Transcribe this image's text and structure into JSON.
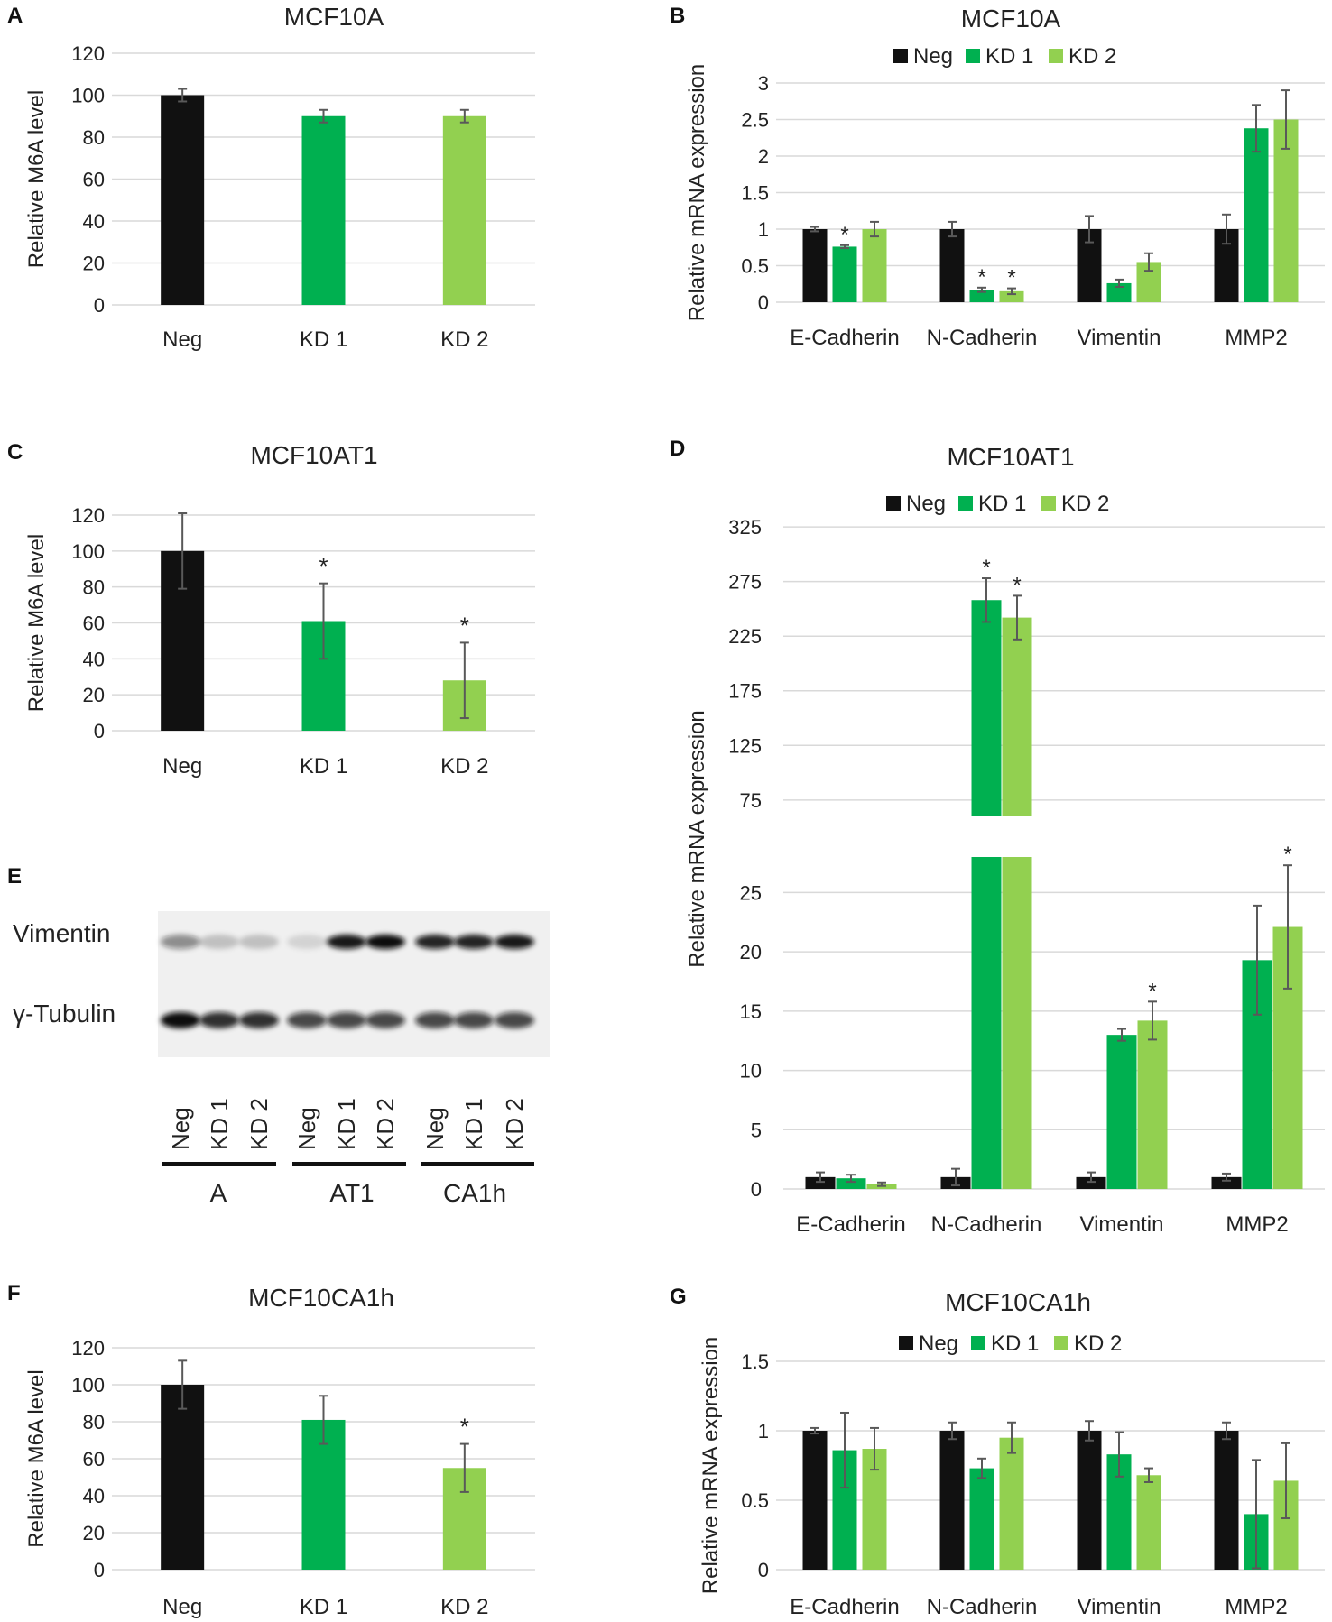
{
  "panels": {
    "A": "A",
    "B": "B",
    "C": "C",
    "D": "D",
    "E": "E",
    "F": "F",
    "G": "G"
  },
  "colors": {
    "neg": "#111111",
    "kd1": "#00b050",
    "kd2": "#92d050",
    "grid": "#d9d9d9",
    "err": "#595959"
  },
  "chart_data": [
    {
      "id": "A",
      "type": "bar",
      "title": "MCF10A",
      "ylabel": "Relative M6A level",
      "categories": [
        "Neg",
        "KD 1",
        "KD 2"
      ],
      "values": [
        100,
        90,
        90
      ],
      "errors": [
        3,
        3,
        3
      ],
      "ylim": [
        0,
        120
      ],
      "yticks": [
        0,
        20,
        40,
        60,
        80,
        100,
        120
      ],
      "stars": [
        false,
        false,
        false
      ]
    },
    {
      "id": "B",
      "type": "bar",
      "title": "MCF10A",
      "ylabel": "Relative mRNA expression",
      "categories": [
        "E-Cadherin",
        "N-Cadherin",
        "Vimentin",
        "MMP2"
      ],
      "legend": [
        "Neg",
        "KD 1",
        "KD 2"
      ],
      "series": [
        {
          "name": "Neg",
          "values": [
            1,
            1,
            1,
            1
          ],
          "errors": [
            0.03,
            0.1,
            0.18,
            0.2
          ],
          "stars": [
            false,
            false,
            false,
            false
          ]
        },
        {
          "name": "KD 1",
          "values": [
            0.76,
            0.17,
            0.26,
            2.38
          ],
          "errors": [
            0.02,
            0.03,
            0.05,
            0.32
          ],
          "stars": [
            true,
            true,
            false,
            false
          ]
        },
        {
          "name": "KD 2",
          "values": [
            1,
            0.15,
            0.55,
            2.5
          ],
          "errors": [
            0.1,
            0.04,
            0.12,
            0.4
          ],
          "stars": [
            false,
            true,
            false,
            false
          ]
        }
      ],
      "ylim": [
        0,
        3
      ],
      "yticks": [
        0,
        0.5,
        1,
        1.5,
        2,
        2.5,
        3
      ],
      "ytick_labels": [
        "0",
        "0.5",
        "1",
        "1.5",
        "2",
        "2.5",
        "3"
      ]
    },
    {
      "id": "C",
      "type": "bar",
      "title": "MCF10AT1",
      "ylabel": "Relative M6A level",
      "categories": [
        "Neg",
        "KD 1",
        "KD 2"
      ],
      "values": [
        100,
        61,
        28
      ],
      "errors": [
        21,
        21,
        21
      ],
      "ylim": [
        0,
        120
      ],
      "yticks": [
        0,
        20,
        40,
        60,
        80,
        100,
        120
      ],
      "stars": [
        false,
        true,
        true
      ]
    },
    {
      "id": "D",
      "type": "bar",
      "title": "MCF10AT1",
      "ylabel": "Relative mRNA expression",
      "categories": [
        "E-Cadherin",
        "N-Cadherin",
        "Vimentin",
        "MMP2"
      ],
      "legend": [
        "Neg",
        "KD 1",
        "KD 2"
      ],
      "broken_axis": true,
      "lower_range": [
        0,
        28
      ],
      "upper_range": [
        60,
        335
      ],
      "lower_ticks": [
        0,
        5,
        10,
        15,
        20,
        25
      ],
      "upper_ticks": [
        75,
        125,
        175,
        225,
        275,
        325
      ],
      "series": [
        {
          "name": "Neg",
          "values": [
            1,
            1,
            1,
            1
          ],
          "errors": [
            0.4,
            0.7,
            0.4,
            0.3
          ],
          "stars": [
            false,
            false,
            false,
            false
          ]
        },
        {
          "name": "KD 1",
          "values": [
            0.9,
            258,
            13,
            19.3
          ],
          "errors": [
            0.3,
            20,
            0.5,
            4.6
          ],
          "stars": [
            false,
            true,
            false,
            false
          ]
        },
        {
          "name": "KD 2",
          "values": [
            0.4,
            242,
            14.2,
            22.1
          ],
          "errors": [
            0.15,
            20,
            1.6,
            5.2
          ],
          "stars": [
            false,
            true,
            true,
            true
          ]
        }
      ]
    },
    {
      "id": "F",
      "type": "bar",
      "title": "MCF10CA1h",
      "ylabel": "Relative M6A level",
      "categories": [
        "Neg",
        "KD 1",
        "KD 2"
      ],
      "values": [
        100,
        81,
        55
      ],
      "errors": [
        13,
        13,
        13
      ],
      "ylim": [
        0,
        120
      ],
      "yticks": [
        0,
        20,
        40,
        60,
        80,
        100,
        120
      ],
      "stars": [
        false,
        false,
        true
      ]
    },
    {
      "id": "G",
      "type": "bar",
      "title": "MCF10CA1h",
      "ylabel": "Relative mRNA expression",
      "categories": [
        "E-Cadherin",
        "N-Cadherin",
        "Vimentin",
        "MMP2"
      ],
      "legend": [
        "Neg",
        "KD 1",
        "KD 2"
      ],
      "series": [
        {
          "name": "Neg",
          "values": [
            1,
            1,
            1,
            1
          ],
          "errors": [
            0.02,
            0.06,
            0.07,
            0.06
          ],
          "stars": [
            false,
            false,
            false,
            false
          ]
        },
        {
          "name": "KD 1",
          "values": [
            0.86,
            0.73,
            0.83,
            0.4
          ],
          "errors": [
            0.27,
            0.07,
            0.16,
            0.39
          ],
          "stars": [
            false,
            false,
            false,
            false
          ]
        },
        {
          "name": "KD 2",
          "values": [
            0.87,
            0.95,
            0.68,
            0.64
          ],
          "errors": [
            0.15,
            0.11,
            0.05,
            0.27
          ],
          "stars": [
            false,
            false,
            false,
            false
          ]
        }
      ],
      "ylim": [
        0,
        1.5
      ],
      "yticks": [
        0,
        0.5,
        1,
        1.5
      ],
      "ytick_labels": [
        "0",
        "0.5",
        "1",
        "1.5"
      ]
    }
  ],
  "blot": {
    "row_labels": [
      "Vimentin",
      "γ-Tubulin"
    ],
    "lanes": [
      "Neg",
      "KD 1",
      "KD 2",
      "Neg",
      "KD 1",
      "KD 2",
      "Neg",
      "KD 1",
      "KD 2"
    ],
    "groups": [
      "A",
      "AT1",
      "CA1h"
    ],
    "vimentin_intensity": [
      0.45,
      0.2,
      0.2,
      0.12,
      0.95,
      1.0,
      0.9,
      0.9,
      0.95
    ],
    "tubulin_intensity": [
      1.0,
      0.85,
      0.85,
      0.75,
      0.75,
      0.75,
      0.75,
      0.75,
      0.75
    ]
  },
  "star": "*"
}
